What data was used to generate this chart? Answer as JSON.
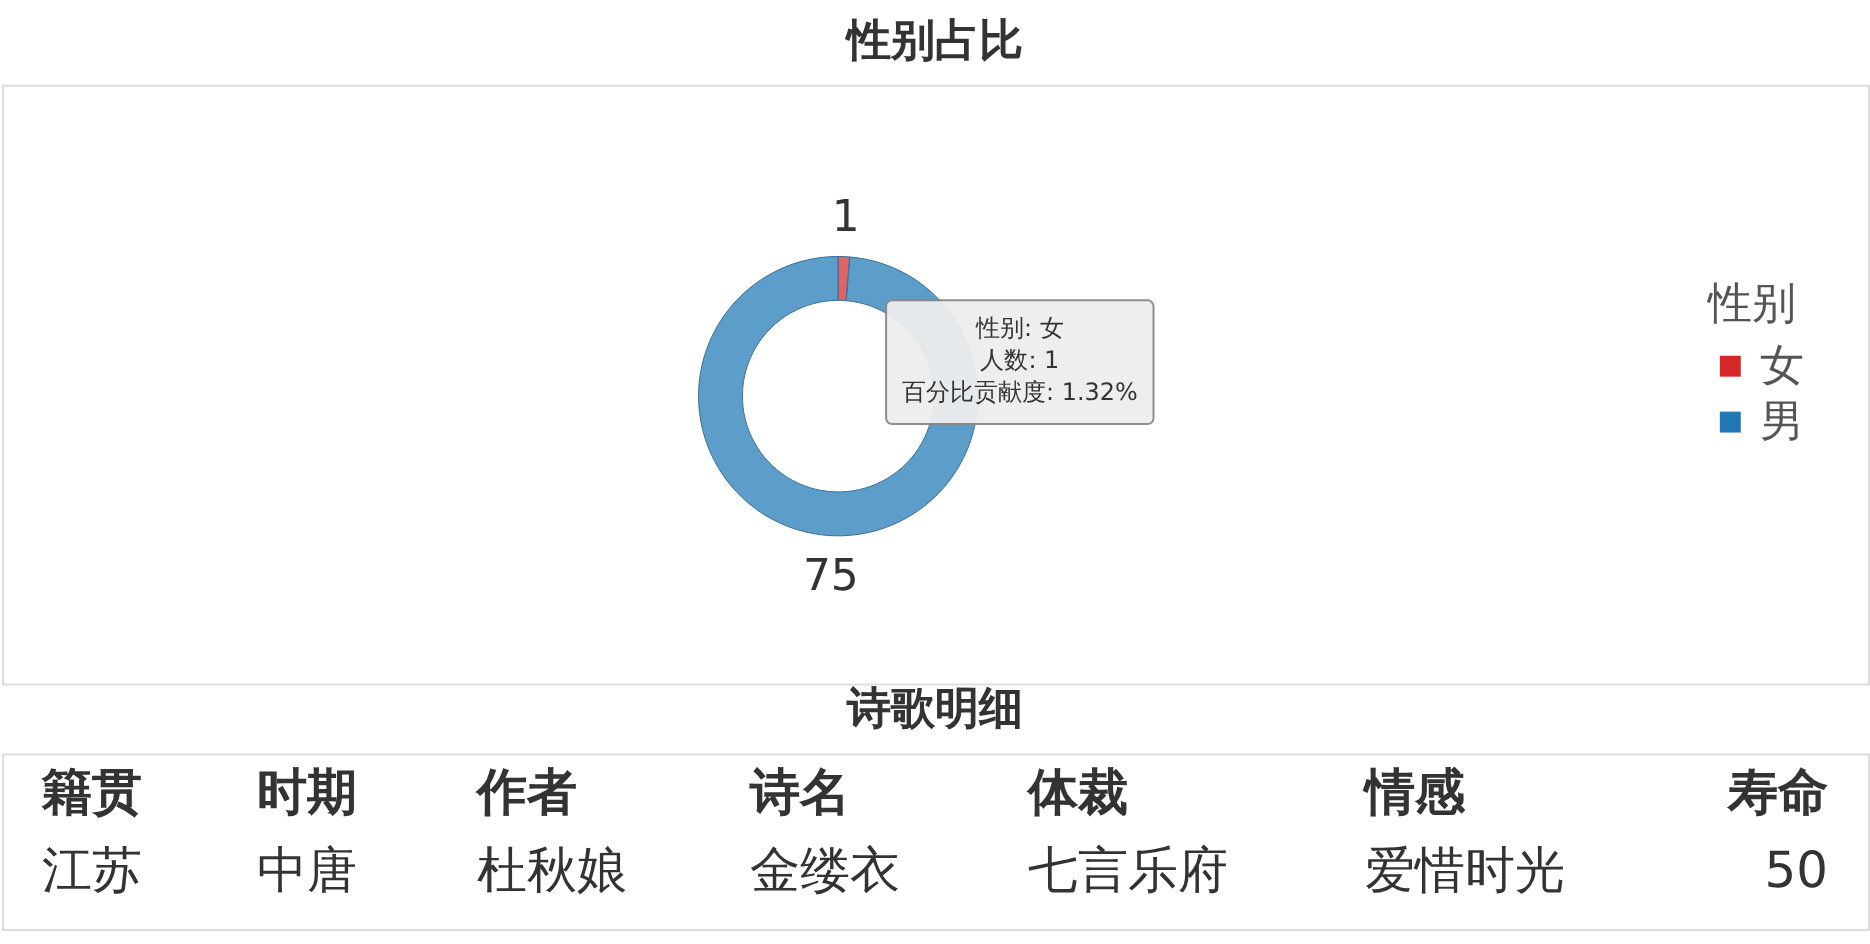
{
  "chart_data": [
    {
      "type": "donut",
      "title": "性别占比",
      "categories": [
        "女",
        "男"
      ],
      "values": [
        1,
        75
      ],
      "colors": [
        "#d62728",
        "#1f77b4"
      ],
      "legend_title": "性别",
      "legend": "right",
      "data_labels": true,
      "annotations": [
        "性别: 女",
        "人数: 1",
        "百分比贡献度: 1.32%"
      ]
    },
    {
      "type": "other",
      "title": "诗歌明细",
      "categories": [
        "籍贯",
        "时期",
        "作者",
        "诗名",
        "体裁",
        "情感",
        "寿命"
      ],
      "annotations": [
        "江苏",
        "中唐",
        "杜秋娘",
        "金缕衣",
        "七言乐府",
        "爱惜时光",
        "50"
      ]
    }
  ]
}
